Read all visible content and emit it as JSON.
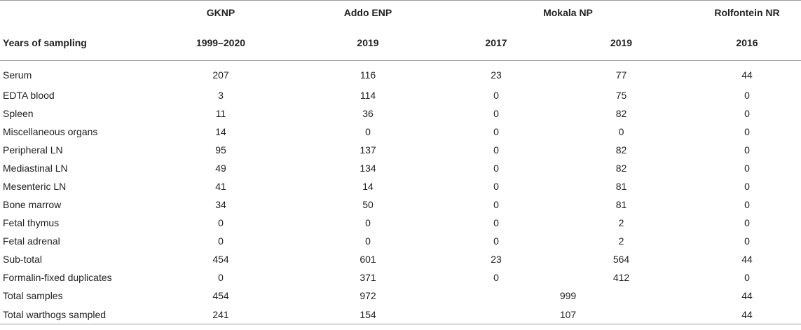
{
  "header": {
    "row_label": "Years of sampling",
    "parks": [
      "GKNP",
      "Addo ENP",
      "Mokala NP",
      "Rolfontein NR"
    ],
    "years": [
      "1999–2020",
      "2019",
      "2017",
      "2019",
      "2016"
    ]
  },
  "rows": [
    {
      "label": "Serum",
      "values": [
        "207",
        "116",
        "23",
        "77",
        "44"
      ]
    },
    {
      "label": "EDTA blood",
      "values": [
        "3",
        "114",
        "0",
        "75",
        "0"
      ]
    },
    {
      "label": "Spleen",
      "values": [
        "11",
        "36",
        "0",
        "82",
        "0"
      ]
    },
    {
      "label": "Miscellaneous organs",
      "values": [
        "14",
        "0",
        "0",
        "0",
        "0"
      ]
    },
    {
      "label": "Peripheral LN",
      "values": [
        "95",
        "137",
        "0",
        "82",
        "0"
      ]
    },
    {
      "label": "Mediastinal LN",
      "values": [
        "49",
        "134",
        "0",
        "82",
        "0"
      ]
    },
    {
      "label": "Mesenteric LN",
      "values": [
        "41",
        "14",
        "0",
        "81",
        "0"
      ]
    },
    {
      "label": "Bone marrow",
      "values": [
        "34",
        "50",
        "0",
        "81",
        "0"
      ]
    },
    {
      "label": "Fetal thymus",
      "values": [
        "0",
        "0",
        "0",
        "2",
        "0"
      ]
    },
    {
      "label": "Fetal adrenal",
      "values": [
        "0",
        "0",
        "0",
        "2",
        "0"
      ]
    },
    {
      "label": "Sub-total",
      "values": [
        "454",
        "601",
        "23",
        "564",
        "44"
      ]
    },
    {
      "label": "Formalin-fixed duplicates",
      "values": [
        "0",
        "371",
        "0",
        "412",
        "0"
      ]
    }
  ],
  "totals": [
    {
      "label": "Total samples",
      "gknp": "454",
      "addo": "972",
      "mokala": "999",
      "rolfontein": "44"
    },
    {
      "label": "Total warthogs sampled",
      "gknp": "241",
      "addo": "154",
      "mokala": "107",
      "rolfontein": "44"
    }
  ]
}
